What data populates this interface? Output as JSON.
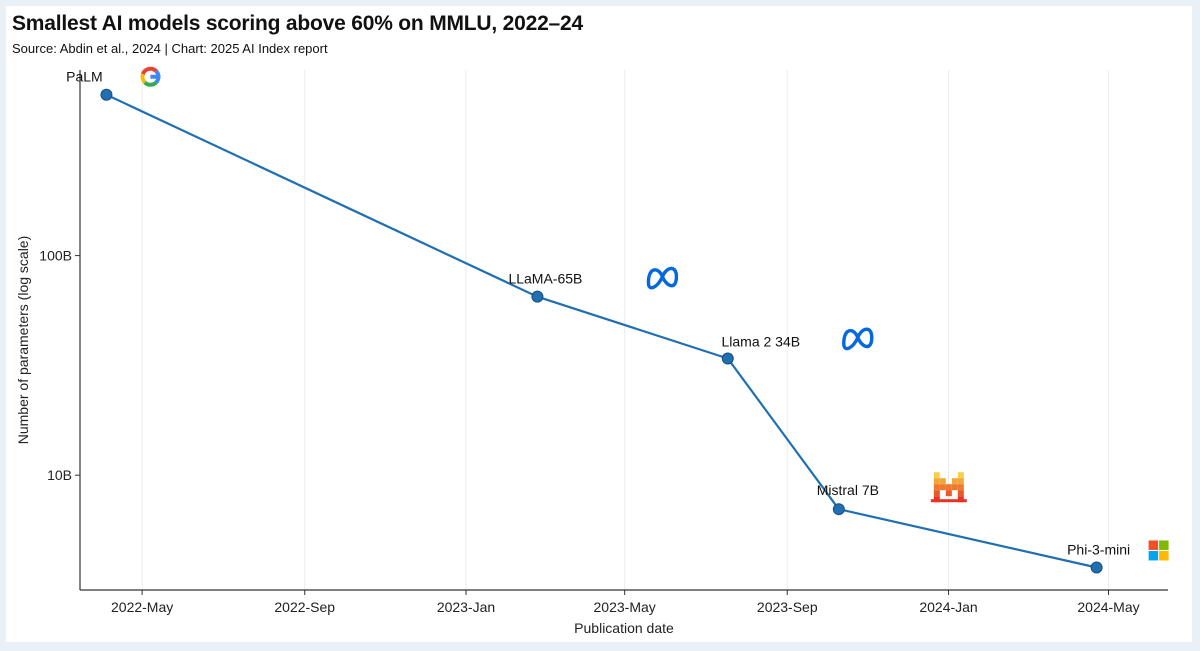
{
  "chart_data": {
    "type": "line",
    "title": "Smallest AI models scoring above 60% on MMLU, 2022–24",
    "subtitle": "Source: Abdin et al., 2024 | Chart: 2025 AI Index report",
    "xlabel": "Publication date",
    "ylabel": "Number of parameters (log scale)",
    "y_scale": "log",
    "ylim_billions": [
      3,
      700
    ],
    "xlim": [
      "2022-03-15",
      "2024-06-15"
    ],
    "grid": "vertical",
    "line_color": "#1f6fb2",
    "x_ticks": [
      {
        "date": "2022-05-01",
        "label": "2022-May"
      },
      {
        "date": "2022-09-01",
        "label": "2022-Sep"
      },
      {
        "date": "2023-01-01",
        "label": "2023-Jan"
      },
      {
        "date": "2023-05-01",
        "label": "2023-May"
      },
      {
        "date": "2023-09-01",
        "label": "2023-Sep"
      },
      {
        "date": "2024-01-01",
        "label": "2024-Jan"
      },
      {
        "date": "2024-05-01",
        "label": "2024-May"
      }
    ],
    "y_ticks": [
      {
        "value_billions": 10,
        "label": "10B"
      },
      {
        "value_billions": 100,
        "label": "100B"
      }
    ],
    "points": [
      {
        "name": "PaLM",
        "date": "2022-04-04",
        "params_billions": 540,
        "logo": "google-logo"
      },
      {
        "name": "LLaMA-65B",
        "date": "2023-02-24",
        "params_billions": 65,
        "logo": "meta-logo"
      },
      {
        "name": "Llama 2 34B",
        "date": "2023-07-18",
        "params_billions": 34,
        "logo": "meta-logo"
      },
      {
        "name": "Mistral 7B",
        "date": "2023-10-10",
        "params_billions": 7,
        "logo": "mistral-logo"
      },
      {
        "name": "Phi-3-mini",
        "date": "2024-04-22",
        "params_billions": 3.8,
        "logo": "microsoft-logo"
      }
    ]
  }
}
